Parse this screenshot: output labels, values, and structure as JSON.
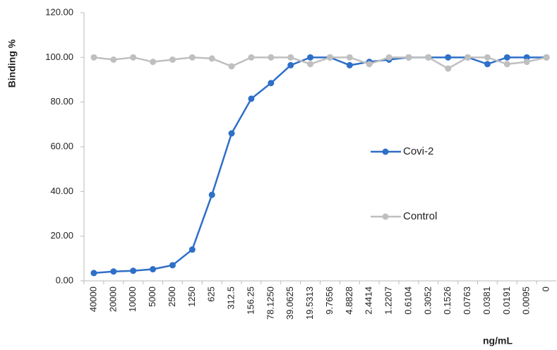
{
  "chart_data": {
    "type": "line",
    "y_label": "Binding %",
    "x_label": "ng/mL",
    "categories": [
      "40000",
      "20000",
      "10000",
      "5000",
      "2500",
      "1250",
      "625",
      "312.5",
      "156.25",
      "78.1250",
      "39.0625",
      "19.5313",
      "9.7656",
      "4.8828",
      "2.4414",
      "1.2207",
      "0.6104",
      "0.3052",
      "0.1526",
      "0.0763",
      "0.0381",
      "0.0191",
      "0.0095",
      "0"
    ],
    "series": [
      {
        "name": "Covi-2",
        "color": "#2e6fc7",
        "values": [
          3.5,
          4.2,
          4.5,
          5.2,
          7,
          14,
          38.5,
          66,
          81.5,
          88.5,
          96.5,
          100,
          100,
          96.5,
          98,
          99,
          100,
          100,
          100,
          100,
          97,
          100,
          100,
          100
        ]
      },
      {
        "name": "Control",
        "color": "#bfbfbf",
        "values": [
          100,
          99,
          100,
          98,
          99,
          100,
          99.5,
          96,
          100,
          100,
          100,
          97,
          100,
          100,
          97,
          100,
          100,
          100,
          95,
          100,
          100,
          97,
          98,
          100
        ]
      }
    ],
    "ylim": [
      0,
      120
    ],
    "yticks": [
      {
        "value": 0,
        "label": "0.00"
      },
      {
        "value": 20,
        "label": "20.00"
      },
      {
        "value": 40,
        "label": "40.00"
      },
      {
        "value": 60,
        "label": "60.00"
      },
      {
        "value": 80,
        "label": "80.00"
      },
      {
        "value": 100,
        "label": "100.00"
      },
      {
        "value": 120,
        "label": "120.00"
      }
    ],
    "grid": false
  }
}
